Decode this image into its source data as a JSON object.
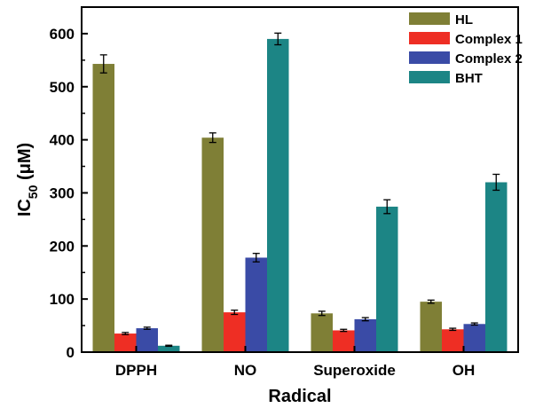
{
  "chart_data": {
    "type": "bar",
    "xlabel": "Radical",
    "ylabel": "IC",
    "ylabel_sub": "50",
    "ylabel_unit": " (μM)",
    "ylim": [
      0,
      650
    ],
    "yticks": [
      0,
      100,
      200,
      300,
      400,
      500,
      600
    ],
    "categories": [
      "DPPH",
      "NO",
      "Superoxide",
      "OH"
    ],
    "legend_position": "top-right",
    "grid": false,
    "series": [
      {
        "name": "HL",
        "color": "#7f7f36",
        "values": [
          543,
          404,
          73,
          95
        ],
        "errors": [
          17,
          9,
          4,
          3
        ]
      },
      {
        "name": "Complex 1",
        "color": "#ee2e24",
        "values": [
          35,
          75,
          41,
          43
        ],
        "errors": [
          2,
          4,
          2,
          2
        ]
      },
      {
        "name": "Complex 2",
        "color": "#3a4ba6",
        "values": [
          45,
          178,
          62,
          53
        ],
        "errors": [
          2,
          8,
          3,
          2
        ]
      },
      {
        "name": "BHT",
        "color": "#1c8585",
        "values": [
          12,
          590,
          274,
          320
        ],
        "errors": [
          1,
          11,
          13,
          15
        ]
      }
    ]
  }
}
